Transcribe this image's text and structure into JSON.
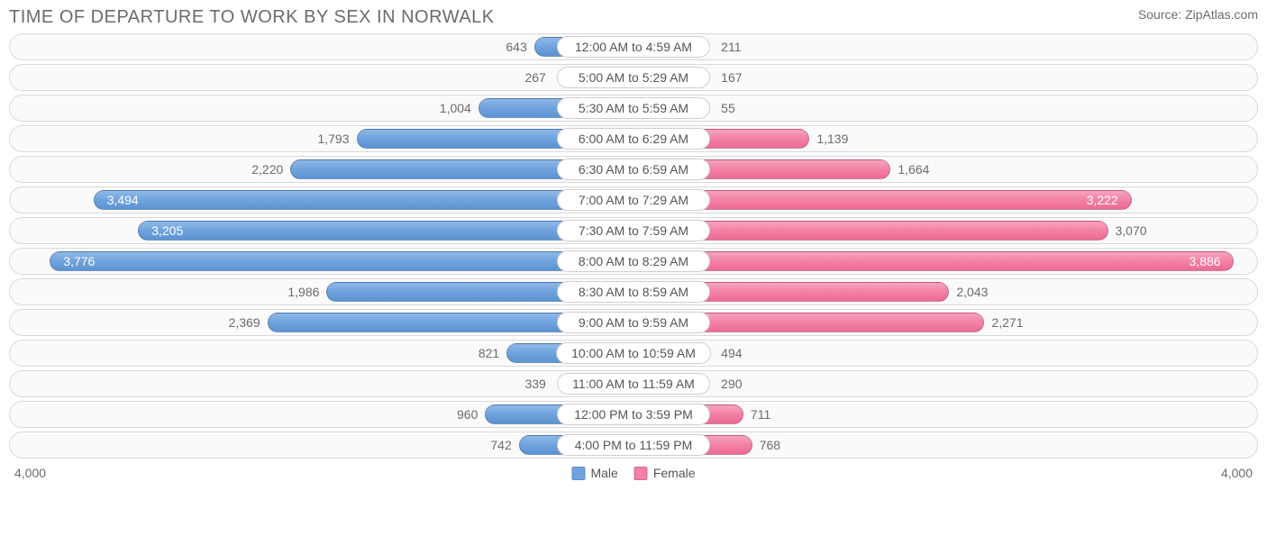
{
  "title": "TIME OF DEPARTURE TO WORK BY SEX IN NORWALK",
  "source": "Source: ZipAtlas.com",
  "chart": {
    "type": "diverging-bar",
    "axis_max": 4000,
    "axis_label_left": "4,000",
    "axis_label_right": "4,000",
    "colors": {
      "male_bar": "#6fa3dd",
      "female_bar": "#f281a4",
      "row_border": "#d9d9d9",
      "row_bg": "#fafafa",
      "text": "#6b6b6b",
      "label_bg": "#ffffff",
      "label_border": "#d0d0d0"
    },
    "legend": {
      "male_label": "Male",
      "female_label": "Female",
      "male_color": "#6fa3dd",
      "female_color": "#f281a4"
    },
    "rows": [
      {
        "label": "12:00 AM to 4:59 AM",
        "male": 643,
        "male_fmt": "643",
        "female": 211,
        "female_fmt": "211"
      },
      {
        "label": "5:00 AM to 5:29 AM",
        "male": 267,
        "male_fmt": "267",
        "female": 167,
        "female_fmt": "167"
      },
      {
        "label": "5:30 AM to 5:59 AM",
        "male": 1004,
        "male_fmt": "1,004",
        "female": 55,
        "female_fmt": "55"
      },
      {
        "label": "6:00 AM to 6:29 AM",
        "male": 1793,
        "male_fmt": "1,793",
        "female": 1139,
        "female_fmt": "1,139"
      },
      {
        "label": "6:30 AM to 6:59 AM",
        "male": 2220,
        "male_fmt": "2,220",
        "female": 1664,
        "female_fmt": "1,664"
      },
      {
        "label": "7:00 AM to 7:29 AM",
        "male": 3494,
        "male_fmt": "3,494",
        "female": 3222,
        "female_fmt": "3,222"
      },
      {
        "label": "7:30 AM to 7:59 AM",
        "male": 3205,
        "male_fmt": "3,205",
        "female": 3070,
        "female_fmt": "3,070"
      },
      {
        "label": "8:00 AM to 8:29 AM",
        "male": 3776,
        "male_fmt": "3,776",
        "female": 3886,
        "female_fmt": "3,886"
      },
      {
        "label": "8:30 AM to 8:59 AM",
        "male": 1986,
        "male_fmt": "1,986",
        "female": 2043,
        "female_fmt": "2,043"
      },
      {
        "label": "9:00 AM to 9:59 AM",
        "male": 2369,
        "male_fmt": "2,369",
        "female": 2271,
        "female_fmt": "2,271"
      },
      {
        "label": "10:00 AM to 10:59 AM",
        "male": 821,
        "male_fmt": "821",
        "female": 494,
        "female_fmt": "494"
      },
      {
        "label": "11:00 AM to 11:59 AM",
        "male": 339,
        "male_fmt": "339",
        "female": 290,
        "female_fmt": "290"
      },
      {
        "label": "12:00 PM to 3:59 PM",
        "male": 960,
        "male_fmt": "960",
        "female": 711,
        "female_fmt": "711"
      },
      {
        "label": "4:00 PM to 11:59 PM",
        "male": 742,
        "male_fmt": "742",
        "female": 768,
        "female_fmt": "768"
      }
    ]
  }
}
